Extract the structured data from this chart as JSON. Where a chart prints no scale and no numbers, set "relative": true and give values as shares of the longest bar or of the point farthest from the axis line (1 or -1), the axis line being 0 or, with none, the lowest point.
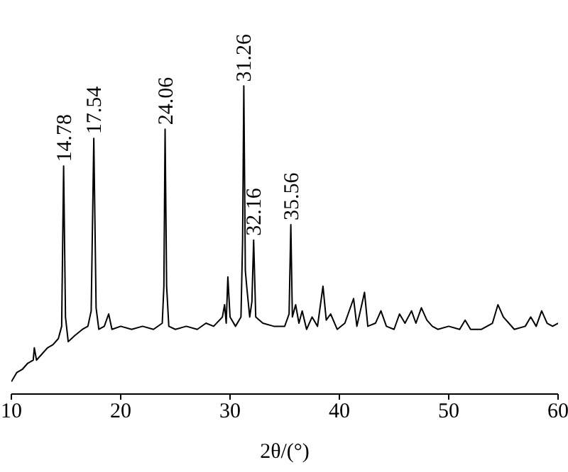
{
  "chart_data": {
    "type": "line",
    "relative": true,
    "xlabel": "2θ/(°)",
    "xlim": [
      10,
      60
    ],
    "xticks": [
      10,
      20,
      30,
      40,
      50,
      60
    ],
    "grid": false,
    "legend": false,
    "marker": "none",
    "line_style": "solid",
    "series": [
      {
        "color": "#000000",
        "x": [
          10,
          10.5,
          11,
          11.5,
          12,
          12.1,
          12.3,
          12.8,
          13.3,
          13.8,
          14.3,
          14.6,
          14.78,
          14.95,
          15.2,
          15.8,
          16.5,
          17.0,
          17.3,
          17.54,
          17.75,
          18.0,
          18.5,
          18.9,
          19.2,
          20,
          21,
          22,
          23,
          23.8,
          23.95,
          24.06,
          24.2,
          24.4,
          25,
          26,
          27,
          27.8,
          28.5,
          29.3,
          29.5,
          29.65,
          29.8,
          30.0,
          30.5,
          31.0,
          31.15,
          31.26,
          31.4,
          31.55,
          31.8,
          32.0,
          32.16,
          32.35,
          33,
          34,
          35,
          35.4,
          35.56,
          35.7,
          36.0,
          36.3,
          36.6,
          37,
          37.5,
          38,
          38.5,
          38.8,
          39.2,
          39.8,
          40.5,
          41.3,
          41.6,
          42.3,
          42.6,
          43.3,
          43.8,
          44.3,
          45,
          45.5,
          46,
          46.6,
          47,
          47.5,
          48,
          48.5,
          49,
          50,
          51,
          51.5,
          52,
          53,
          54,
          54.5,
          55,
          55.5,
          56,
          57,
          57.5,
          58,
          58.5,
          59,
          59.5,
          60
        ],
        "values": [
          0.04,
          0.07,
          0.08,
          0.1,
          0.11,
          0.15,
          0.11,
          0.13,
          0.15,
          0.16,
          0.18,
          0.22,
          0.74,
          0.25,
          0.17,
          0.19,
          0.21,
          0.22,
          0.27,
          0.83,
          0.28,
          0.21,
          0.22,
          0.26,
          0.21,
          0.22,
          0.21,
          0.22,
          0.21,
          0.23,
          0.35,
          0.86,
          0.35,
          0.22,
          0.21,
          0.22,
          0.21,
          0.23,
          0.22,
          0.25,
          0.29,
          0.23,
          0.38,
          0.25,
          0.22,
          0.25,
          0.5,
          1.0,
          0.4,
          0.34,
          0.25,
          0.3,
          0.5,
          0.25,
          0.23,
          0.22,
          0.22,
          0.26,
          0.55,
          0.25,
          0.29,
          0.23,
          0.27,
          0.21,
          0.25,
          0.22,
          0.35,
          0.24,
          0.26,
          0.21,
          0.23,
          0.31,
          0.22,
          0.33,
          0.22,
          0.23,
          0.27,
          0.22,
          0.21,
          0.26,
          0.23,
          0.27,
          0.23,
          0.28,
          0.24,
          0.22,
          0.21,
          0.22,
          0.21,
          0.24,
          0.21,
          0.21,
          0.23,
          0.29,
          0.25,
          0.23,
          0.21,
          0.22,
          0.25,
          0.22,
          0.27,
          0.23,
          0.22,
          0.23
        ]
      }
    ],
    "annotations": [
      {
        "text": "14.78",
        "x": 14.78,
        "y": 0.74
      },
      {
        "text": "17.54",
        "x": 17.54,
        "y": 0.83
      },
      {
        "text": "24.06",
        "x": 24.06,
        "y": 0.86
      },
      {
        "text": "31.26",
        "x": 31.26,
        "y": 1.0
      },
      {
        "text": "32.16",
        "x": 32.16,
        "y": 0.5
      },
      {
        "text": "35.56",
        "x": 35.56,
        "y": 0.55
      }
    ]
  }
}
